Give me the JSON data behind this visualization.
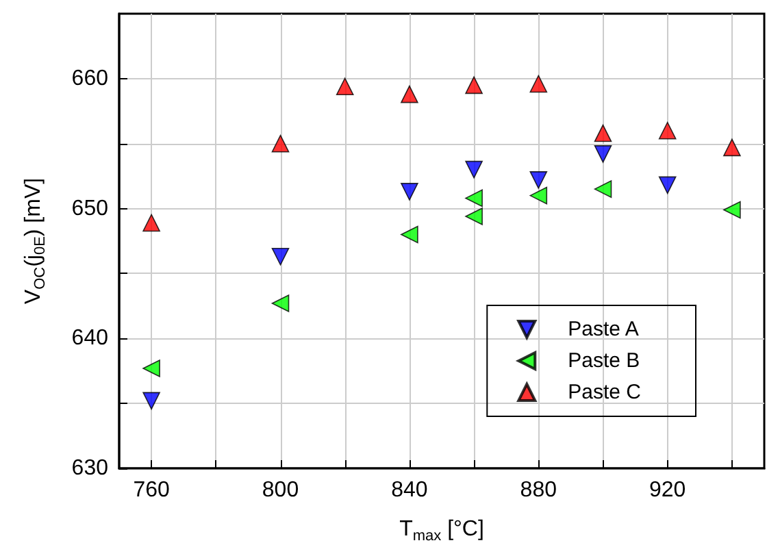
{
  "chart_data": {
    "type": "scatter",
    "xlabel": "T$_{max}$ [°C]",
    "ylabel": "V$_{OC}$(j$_{0E}$) [mV]",
    "xlim": [
      750,
      950
    ],
    "xticks": [
      760,
      {
        "value": 780,
        "label": null
      },
      800,
      {
        "value": 820,
        "label": null
      },
      840,
      {
        "value": 860,
        "label": null
      },
      880,
      {
        "value": 900,
        "label": null
      },
      920,
      {
        "value": 940,
        "label": null
      }
    ],
    "ylim": [
      630,
      665
    ],
    "yticks": [
      630,
      {
        "value": 635,
        "label": null
      },
      640,
      {
        "value": 645,
        "label": null
      },
      650,
      {
        "value": 655,
        "label": null
      },
      660
    ],
    "grid": true,
    "legend": "bottom right",
    "series": [
      {
        "name": "Paste A",
        "color": "#0000ff",
        "marker": "triangle-down",
        "x": [
          760,
          800,
          840,
          860,
          880,
          900,
          920
        ],
        "values": [
          635.2,
          646.3,
          651.3,
          653.0,
          652.2,
          654.2,
          651.8
        ]
      },
      {
        "name": "Paste B",
        "color": "#00ff00",
        "marker": "triangle-left",
        "x": [
          760,
          800,
          840,
          860,
          860,
          880,
          900,
          940
        ],
        "values": [
          637.7,
          642.7,
          648.0,
          650.8,
          649.4,
          651.0,
          651.5,
          649.9
        ]
      },
      {
        "name": "Paste C",
        "color": "#ff0000",
        "marker": "triangle",
        "x": [
          760,
          800,
          820,
          840,
          860,
          880,
          900,
          920,
          940
        ],
        "values": [
          648.9,
          655.0,
          659.4,
          658.8,
          659.5,
          659.6,
          655.8,
          656.0,
          654.7
        ]
      }
    ]
  }
}
